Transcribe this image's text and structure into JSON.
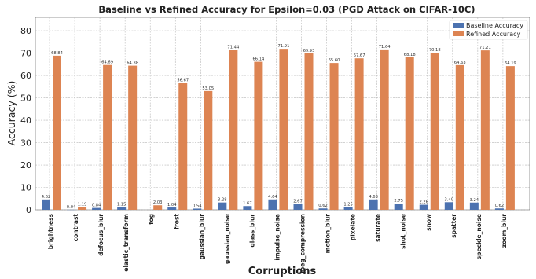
{
  "chart_data": {
    "type": "bar",
    "title": "Baseline vs Refined Accuracy for Epsilon=0.03 (PGD Attack on CIFAR-10C)",
    "xlabel": "Corruptions",
    "ylabel": "Accuracy (%)",
    "ylim": [
      0,
      86
    ],
    "yticks": [
      0,
      10,
      20,
      30,
      40,
      50,
      60,
      70,
      80
    ],
    "grid": true,
    "legend_position": "top-right",
    "categories": [
      "brightness",
      "contrast",
      "defocus_blur",
      "elastic_transform",
      "fog",
      "frost",
      "gaussian_blur",
      "gaussian_noise",
      "glass_blur",
      "impulse_noise",
      "jpeg_compression",
      "motion_blur",
      "pixelate",
      "saturate",
      "shot_noise",
      "snow",
      "spatter",
      "speckle_noise",
      "zoom_blur"
    ],
    "series": [
      {
        "name": "Baseline Accuracy",
        "color": "#4c72b0",
        "values": [
          4.62,
          0.04,
          0.84,
          1.15,
          null,
          1.04,
          0.54,
          3.28,
          1.67,
          4.64,
          2.67,
          0.62,
          1.25,
          4.63,
          2.75,
          2.26,
          3.4,
          3.24,
          0.62
        ],
        "labels": [
          "4.62",
          "0.04",
          "0.84",
          "1.15",
          "",
          "1.04",
          "0.54",
          "3.28",
          "1.67",
          "4.64",
          "2.67",
          "0.62",
          "1.25",
          "4.63",
          "2.75",
          "2.26",
          "3.40",
          "3.24",
          "0.62"
        ]
      },
      {
        "name": "Refined Accuracy",
        "color": "#dd8452",
        "values": [
          68.84,
          1.19,
          64.69,
          64.38,
          2.03,
          56.67,
          53.05,
          71.44,
          66.14,
          71.91,
          69.93,
          65.6,
          67.67,
          71.64,
          68.18,
          70.18,
          64.63,
          71.21,
          64.19
        ],
        "labels": [
          "68.84",
          "1.19",
          "64.69",
          "64.38",
          "2.03",
          "56.67",
          "53.05",
          "71.44",
          "66.14",
          "71.91",
          "69.93",
          "65.60",
          "67.67",
          "71.64",
          "68.18",
          "70.18",
          "64.63",
          "71.21",
          "64.19"
        ]
      }
    ]
  }
}
